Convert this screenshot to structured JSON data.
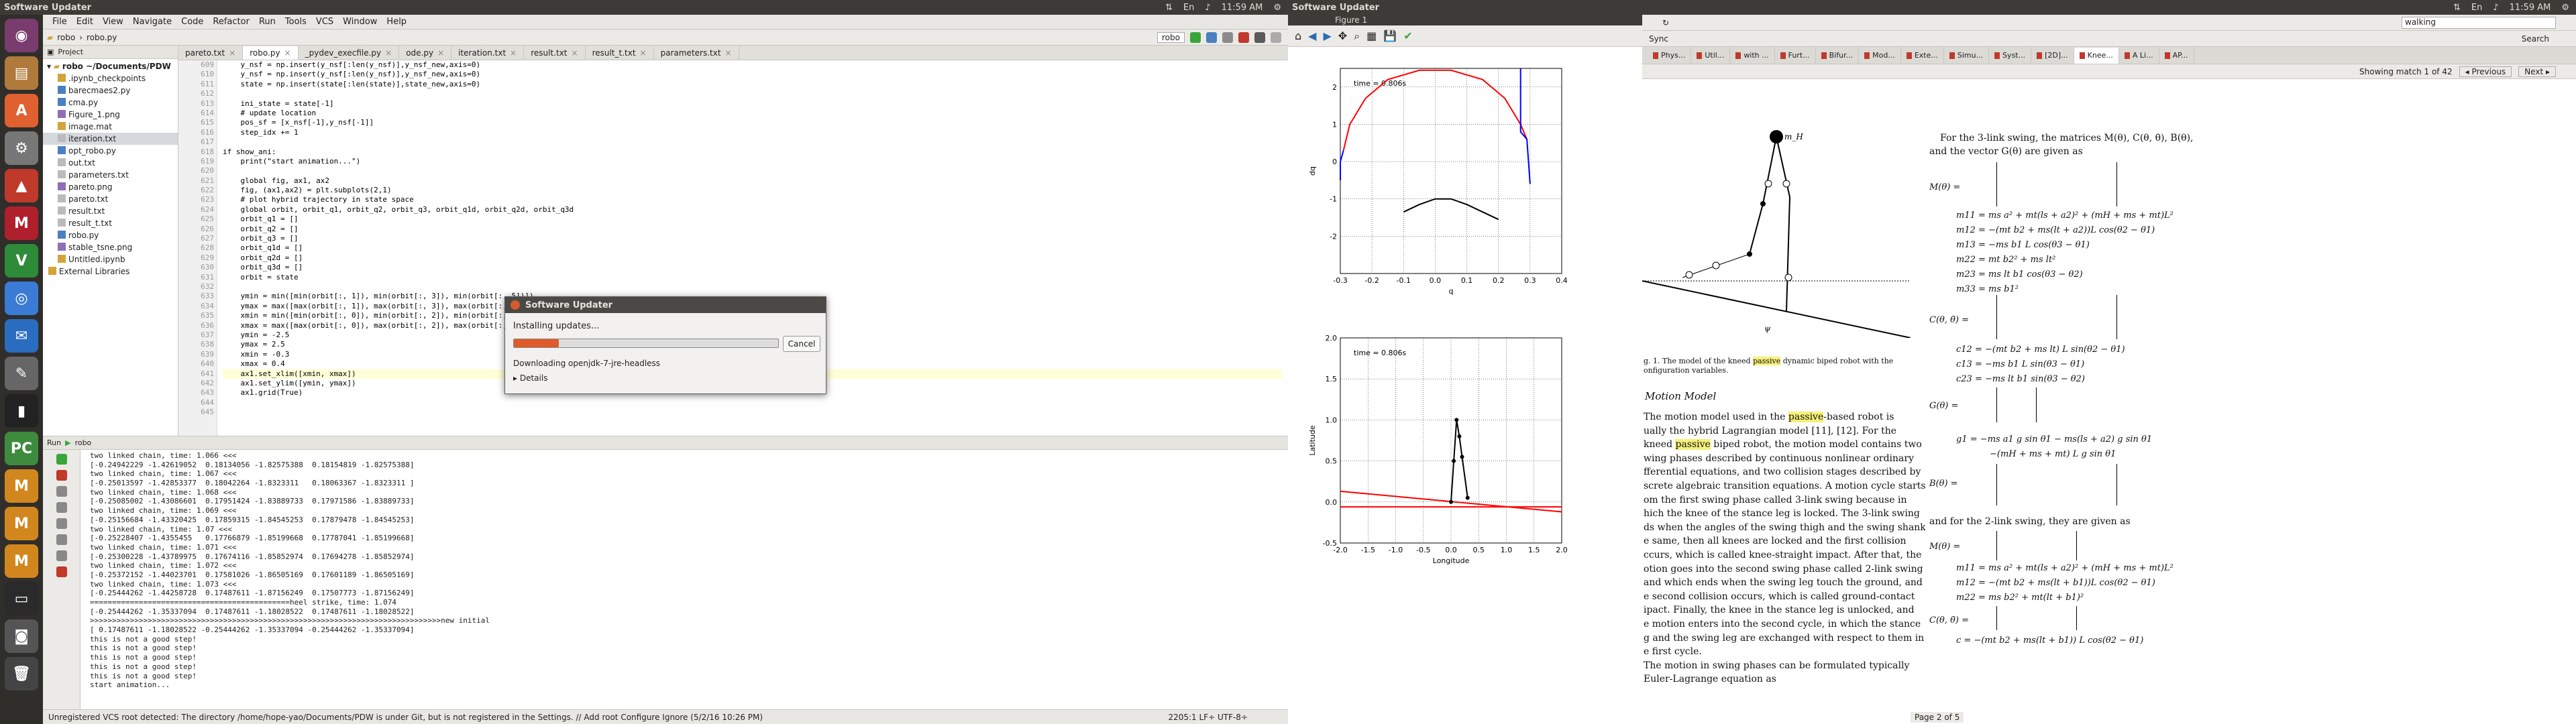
{
  "left_panel": {
    "title": "Software Updater",
    "time": "11:59 AM"
  },
  "right_panel": {
    "title": "Software Updater",
    "time": "11:59 AM"
  },
  "ide": {
    "menu": [
      "File",
      "Edit",
      "View",
      "Navigate",
      "Code",
      "Refactor",
      "Run",
      "Tools",
      "VCS",
      "Window",
      "Help"
    ],
    "breadcrumb": [
      "robo",
      "robo.py"
    ],
    "run_config": "robo",
    "project_header": "Project",
    "project_root": "robo ~/Documents/PDW",
    "project_items": [
      ".ipynb_checkpoints",
      "barecmaes2.py",
      "cma.py",
      "Figure_1.png",
      "image.mat",
      "iteration.txt",
      "opt_robo.py",
      "out.txt",
      "parameters.txt",
      "pareto.png",
      "pareto.txt",
      "result.txt",
      "result_t.txt",
      "robo.py",
      "stable_tsne.png",
      "Untitled.ipynb",
      "External Libraries"
    ],
    "tabs": [
      "pareto.txt",
      "robo.py",
      "_pydev_execfile.py",
      "ode.py",
      "iteration.txt",
      "result.txt",
      "result_t.txt",
      "parameters.txt"
    ],
    "active_tab": "robo.py",
    "line_numbers": [
      "609",
      "610",
      "611",
      "612",
      "613",
      "614",
      "615",
      "616",
      "617",
      "618",
      "619",
      "620",
      "621",
      "622",
      "623",
      "624",
      "625",
      "626",
      "627",
      "628",
      "629",
      "630",
      "631",
      "632",
      "633",
      "634",
      "635",
      "636",
      "637",
      "638",
      "639",
      "640",
      "641",
      "642",
      "643",
      "644",
      "645"
    ],
    "code_lines": [
      "    y_nsf = np.insert(y_nsf[:len(y_nsf)],y_nsf_new,axis=0)",
      "    y_nsf = np.insert(y_nsf[:len(y_nsf)],y_nsf_new,axis=0)",
      "    state = np.insert(state[:len(state)],state_new,axis=0)",
      "",
      "    ini_state = state[-1]",
      "    # update location",
      "    pos_sf = [x_nsf[-1],y_nsf[-1]]",
      "    step_idx += 1",
      "",
      "if show_ani:",
      "    print(\"start animation...\")",
      "",
      "    global fig, ax1, ax2",
      "    fig, (ax1,ax2) = plt.subplots(2,1)",
      "    # plot hybrid trajectory in state space",
      "    global orbit, orbit_q1, orbit_q2, orbit_q3, orbit_q1d, orbit_q2d, orbit_q3d",
      "    orbit_q1 = []",
      "    orbit_q2 = []",
      "    orbit_q3 = []",
      "    orbit_q1d = []",
      "    orbit_q2d = []",
      "    orbit_q3d = []",
      "    orbit = state",
      "",
      "    ymin = min([min(orbit[:, 1]), min(orbit[:, 3]), min(orbit[:, 5])])",
      "    ymax = max([max(orbit[:, 1]), max(orbit[:, 3]), max(orbit[:, 5])])",
      "    xmin = min([min(orbit[:, 0]), min(orbit[:, 2]), min(orbit[:, 4])])",
      "    xmax = max([max(orbit[:, 0]), max(orbit[:, 2]), max(orbit[:, 4])])",
      "    ymin = -2.5",
      "    ymax = 2.5",
      "    xmin = -0.3",
      "    xmax = 0.4",
      "    ax1.set_xlim([xmin, xmax])",
      "    ax1.set_ylim([ymin, ymax])",
      "    ax1.grid(True)",
      "",
      ""
    ],
    "run_header": "Run",
    "run_name": "robo",
    "console_lines": [
      "two linked chain, time: 1.066 <<<",
      "[-0.24942229 -1.42619052  0.18134056 -1.82575388  0.18154819 -1.82575388]",
      "two linked chain, time: 1.067 <<<",
      "[-0.25013597 -1.42853377  0.18042264 -1.8323311   0.18063367 -1.8323311 ]",
      "two linked chain, time: 1.068 <<<",
      "[-0.25085002 -1.43086601  0.17951424 -1.83889733  0.17971586 -1.83889733]",
      "two linked chain, time: 1.069 <<<",
      "[-0.25156684 -1.43320425  0.17859315 -1.84545253  0.17879478 -1.84545253]",
      "two linked chain, time: 1.07 <<<",
      "[-0.25228407 -1.4355455   0.17766879 -1.85199668  0.17787041 -1.85199668]",
      "two linked chain, time: 1.071 <<<",
      "[-0.25300228 -1.43789975  0.17674116 -1.85852974  0.17694278 -1.85852974]",
      "two linked chain, time: 1.072 <<<",
      "[-0.25372152 -1.44023701  0.17581026 -1.86505169  0.17601189 -1.86505169]",
      "two linked chain, time: 1.073 <<<",
      "[-0.25444262 -1.44258728  0.17487611 -1.87156249  0.17507773 -1.87156249]",
      "=============================================heel strike, time: 1.074",
      "[-0.25444262 -1.35337094  0.17487611 -1.18028522  0.17487611 -1.18028522]",
      ">>>>>>>>>>>>>>>>>>>>>>>>>>>>>>>>>>>>>>>>>>>>>>>>>>>>>>>>>>>>>>>>>>>>>>>>>>>>>>>new initial",
      "[ 0.17487611 -1.18028522 -0.25444262 -1.35337094 -0.25444262 -1.35337094]",
      "this is not a good step!",
      "this is not a good step!",
      "this is not a good step!",
      "this is not a good step!",
      "this is not a good step!",
      "start animation..."
    ],
    "status_text": "Unregistered VCS root detected: The directory /home/hope-yao/Documents/PDW is under Git, but is not registered in the Settings. // Add root  Configure  Ignore (5/2/16 10:26 PM)",
    "status_right": "2205:1  LF÷  UTF-8÷"
  },
  "dialog": {
    "title": "Software Updater",
    "message": "Installing updates...",
    "progress": 0.17,
    "cancel_label": "Cancel",
    "detail": "Downloading openjdk-7-jre-headless",
    "details_label": "Details"
  },
  "figure": {
    "title": "Figure 1",
    "chart_data": [
      {
        "type": "line",
        "annotation": "time = 0.806s",
        "xlabel": "q",
        "ylabel": "dq",
        "xlim": [
          -0.3,
          0.4
        ],
        "ylim": [
          -3,
          2.5
        ],
        "xticks": [
          "-0.3",
          "-0.2",
          "-0.1",
          "0.0",
          "0.1",
          "0.2",
          "0.3",
          "0.4"
        ],
        "yticks": [
          "2",
          "1",
          "0",
          "-1",
          "-2"
        ],
        "grid": true,
        "series": [
          {
            "color": "#ff0000",
            "x": [
              -0.29,
              -0.27,
              -0.22,
              -0.15,
              -0.05,
              0.05,
              0.15,
              0.22,
              0.27,
              0.29
            ],
            "y": [
              0.3,
              1.0,
              1.7,
              2.2,
              2.45,
              2.45,
              2.2,
              1.7,
              1.0,
              0.6
            ]
          },
          {
            "color": "#0000ff",
            "x": [
              -0.3,
              -0.3,
              -0.29
            ],
            "y": [
              -0.5,
              0.0,
              0.3
            ]
          },
          {
            "color": "#0000ff",
            "x": [
              0.27,
              0.27,
              0.29,
              0.3
            ],
            "y": [
              2.5,
              0.8,
              0.6,
              -0.6
            ]
          },
          {
            "color": "#000000",
            "x": [
              -0.1,
              -0.05,
              0.0,
              0.05,
              0.1,
              0.15,
              0.2
            ],
            "y": [
              -1.35,
              -1.15,
              -1.0,
              -1.0,
              -1.15,
              -1.35,
              -1.55
            ]
          }
        ]
      },
      {
        "type": "line",
        "annotation": "time = 0.806s",
        "xlabel": "Longitude",
        "ylabel": "Latitude",
        "xlim": [
          -2.0,
          2.0
        ],
        "ylim": [
          -0.5,
          2.0
        ],
        "xticks": [
          "-2.0",
          "-1.5",
          "-1.0",
          "-0.5",
          "0.0",
          "0.5",
          "1.0",
          "1.5",
          "2.0"
        ],
        "yticks": [
          "2.0",
          "1.5",
          "1.0",
          "0.5",
          "0.0",
          "-0.5"
        ],
        "grid": true,
        "series": [
          {
            "color": "#ff0000",
            "x": [
              -2.0,
              2.0
            ],
            "y": [
              0.13,
              -0.12
            ]
          },
          {
            "color": "#ff0000",
            "x": [
              -2.0,
              2.0
            ],
            "y": [
              -0.06,
              -0.06
            ]
          },
          {
            "color": "#000000",
            "x": [
              0.0,
              0.05,
              0.1,
              0.15,
              0.2,
              0.3
            ],
            "y": [
              0.0,
              0.5,
              1.0,
              0.8,
              0.55,
              0.05
            ]
          }
        ]
      }
    ]
  },
  "browser": {
    "search_value": "walking",
    "search_label": "Search",
    "sync_label": "Sync",
    "tabs": [
      "Phys...",
      "Util...",
      "with ...",
      "Furt...",
      "Bifur...",
      "Mod...",
      "Exte...",
      "Simu...",
      "Syst...",
      "[2D]...",
      "Knee...",
      "A Li...",
      "AP..."
    ],
    "active_tab": "Knee...",
    "find_status": "Showing match 1 of 42",
    "previous_label": "Previous",
    "next_label": "Next",
    "page_status": "Page 2 of 5",
    "figure_caption": "g. 1.  The model of the kneed passive dynamic biped robot with the onfiguration variables.",
    "section_title": "Motion Model",
    "left_text": [
      "The motion model used in the passive-based robot is",
      "ually the hybrid Lagrangian model [11], [12]. For the",
      "kneed passive biped robot, the motion model contains two",
      "wing phases described by continuous nonlinear ordinary",
      "fferential equations, and two collision stages described by",
      "screte algebraic transition equations. A motion cycle starts",
      "om the first swing phase called 3-link swing because in",
      "hich the knee of the stance leg is locked. The 3-link swing",
      "ds when the angles of the swing thigh and the swing shank",
      "e same, then all knees are locked and the first collision",
      "ccurs, which is called knee-straight impact. After that, the",
      "otion goes into the second swing phase called 2-link swing",
      "and which ends when the swing leg touch the ground, and",
      "e second collision occurs, which is called ground-contact",
      "ipact. Finally, the knee in the stance leg is unlocked, and",
      "e motion enters into the second cycle, in which the stance",
      "g and the swing leg are exchanged with respect to them in",
      "e first cycle.",
      "The motion in swing phases can be formulated typically",
      " Euler-Lagrange equation as"
    ],
    "right_text": [
      "For the 3-link swing, the matrices M(θ), C(θ, θ̇), B(θ),",
      "and the vector G(θ) are given as",
      "and for the 2-link swing, they are given as"
    ],
    "equations": [
      "m11 = ms a² + mt(ls + a2)² + (mH + ms + mt)L²",
      "m12 = −(mt b2 + ms(lt + a2))L cos(θ2 − θ1)",
      "m13 = −ms b1 L cos(θ3 − θ1)",
      "m22 = mt b2² + ms lt²",
      "m23 = ms lt b1 cos(θ3 − θ2)",
      "m33 = ms b1²",
      "c12 = −(mt b2 + ms lt) L sin(θ2 − θ1)",
      "c13 = −ms b1 L sin(θ3 − θ1)",
      "c23 = −ms lt b1 sin(θ3 − θ2)",
      "g1 = −ms a1 g sin θ1 − ms(ls + a2) g sin θ1",
      "−(mH + ms + mt) L g sin θ1",
      "m11 = ms a² + mt(ls + a2)² + (mH + ms + mt)L²",
      "m12 = −(mt b2 + ms(lt + b1))L cos(θ2 − θ1)",
      "m22 = ms b2² + mt(lt + b1)²",
      "c = −(mt b2 + ms(lt + b1)) L cos(θ2 − θ1)"
    ],
    "matrix_labels": [
      "M(θ) =",
      "C(θ, θ̇) =",
      "G(θ) =",
      "B(θ) =",
      "M(θ) =",
      "C(θ, θ̇) ="
    ]
  },
  "colors": {
    "panel": "#3c3b37",
    "launcher": "#2f2e2b",
    "progress": "#e05a2b",
    "highlight": "#f5f07a"
  }
}
